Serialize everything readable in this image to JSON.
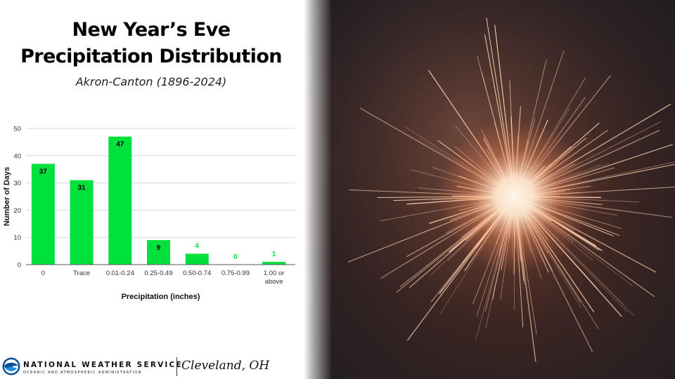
{
  "title": {
    "line1": "New Year’s Eve",
    "line2": "Precipitation Distribution"
  },
  "subtitle": "Akron-Canton (1896-2024)",
  "chart_data": {
    "type": "bar",
    "categories": [
      "0",
      "Trace",
      "0.01-0.24",
      "0.25-0.49",
      "0.50-0.74",
      "0.75-0.99",
      "1.00 or above"
    ],
    "values": [
      37,
      31,
      47,
      9,
      4,
      0,
      1
    ],
    "data_labels": [
      "37",
      "31",
      "47",
      "9",
      "4",
      "0",
      "1"
    ],
    "xlabel": "Precipitation (inches)",
    "ylabel": "Number of Days",
    "ylim": [
      0,
      50
    ],
    "yticks": [
      0,
      10,
      20,
      30,
      40,
      50
    ],
    "grid": true,
    "bar_color": "#00e13c",
    "label_color_inside": "#000000",
    "label_color_outside": "#00e13c",
    "gridline_color": "#d9d9d9"
  },
  "footer": {
    "agency_name": "NATIONAL WEATHER SERVICE",
    "agency_sub": "OCEANIC AND ATMOSPHERIC ADMINISTRATION",
    "office": "Cleveland, OH",
    "logo": "noaa-logo-icon"
  },
  "photo": {
    "subject": "sparkler-photo",
    "spark_color": "#ffd2b0",
    "glow_color": "#fff7ee"
  }
}
